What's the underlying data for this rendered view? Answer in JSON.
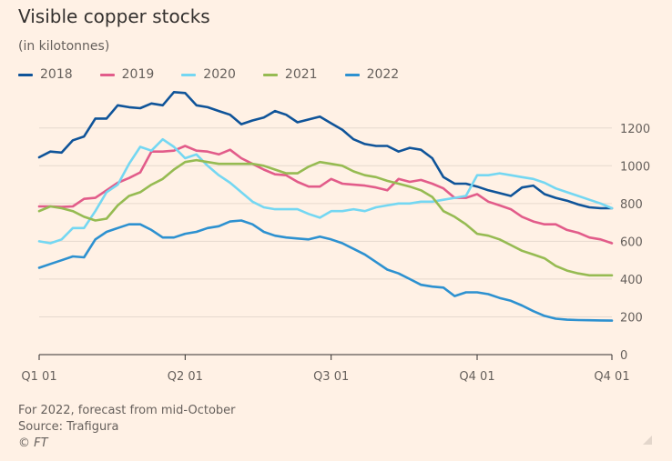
{
  "title": "Visible copper stocks",
  "subtitle": "(in kilotonnes)",
  "footer": {
    "note": "For 2022, forecast from mid-October",
    "source": "Source: Trafigura",
    "copyright": "© FT"
  },
  "chart_data": {
    "type": "line",
    "title": "Visible copper stocks",
    "ylabel": "(in kilotonnes)",
    "xlabel": "",
    "ylim": [
      0,
      1300
    ],
    "yticks": [
      0,
      200,
      400,
      600,
      800,
      1000,
      1200
    ],
    "xticks": [
      {
        "label": "Q1 01",
        "week": 0
      },
      {
        "label": "Q2 01",
        "week": 13
      },
      {
        "label": "Q3 01",
        "week": 26
      },
      {
        "label": "Q4 01",
        "week": 39
      },
      {
        "label": "Q4 01",
        "week": 51
      }
    ],
    "xlim": [
      0,
      51
    ],
    "grid": "horizontal",
    "legend_position": "top-left",
    "series": [
      {
        "name": "2018",
        "color": "#0f5499",
        "values": [
          1045,
          1075,
          1070,
          1135,
          1155,
          1250,
          1250,
          1320,
          1310,
          1305,
          1330,
          1320,
          1390,
          1385,
          1320,
          1310,
          1290,
          1270,
          1220,
          1240,
          1255,
          1290,
          1270,
          1230,
          1245,
          1260,
          1225,
          1190,
          1140,
          1115,
          1105,
          1105,
          1075,
          1095,
          1085,
          1040,
          940,
          905,
          905,
          890,
          870,
          855,
          840,
          885,
          895,
          850,
          830,
          815,
          795,
          780,
          775,
          775
        ]
      },
      {
        "name": "2019",
        "color": "#e25c8a",
        "values": [
          785,
          785,
          782,
          785,
          825,
          830,
          870,
          910,
          935,
          965,
          1075,
          1075,
          1080,
          1105,
          1080,
          1075,
          1060,
          1085,
          1040,
          1010,
          980,
          955,
          950,
          915,
          890,
          890,
          930,
          905,
          900,
          895,
          885,
          870,
          930,
          915,
          925,
          905,
          880,
          830,
          830,
          850,
          810,
          790,
          770,
          730,
          705,
          690,
          690,
          660,
          645,
          620,
          610,
          590
        ]
      },
      {
        "name": "2020",
        "color": "#74d7f2",
        "values": [
          600,
          590,
          610,
          670,
          670,
          760,
          860,
          900,
          1010,
          1100,
          1080,
          1140,
          1100,
          1040,
          1060,
          1000,
          950,
          910,
          860,
          810,
          780,
          770,
          770,
          770,
          745,
          725,
          760,
          760,
          770,
          760,
          780,
          790,
          800,
          800,
          810,
          810,
          820,
          830,
          840,
          950,
          950,
          960,
          950,
          940,
          930,
          910,
          880,
          860,
          840,
          820,
          800,
          775
        ]
      },
      {
        "name": "2021",
        "color": "#96bb52",
        "values": [
          760,
          785,
          775,
          760,
          730,
          710,
          720,
          790,
          840,
          860,
          900,
          930,
          980,
          1020,
          1030,
          1020,
          1010,
          1010,
          1010,
          1010,
          1000,
          980,
          960,
          960,
          995,
          1020,
          1010,
          1000,
          970,
          950,
          940,
          920,
          905,
          890,
          870,
          835,
          760,
          730,
          690,
          640,
          630,
          610,
          580,
          550,
          530,
          510,
          470,
          445,
          430,
          420,
          420,
          420
        ]
      },
      {
        "name": "2022",
        "color": "#2d91d0",
        "values": [
          460,
          480,
          500,
          520,
          515,
          610,
          650,
          670,
          690,
          690,
          660,
          620,
          620,
          640,
          650,
          670,
          680,
          705,
          710,
          690,
          650,
          630,
          620,
          615,
          610,
          625,
          610,
          590,
          560,
          530,
          490,
          450,
          430,
          400,
          370,
          360,
          355,
          310,
          330,
          330,
          320,
          300,
          285,
          260,
          230,
          205,
          190,
          185,
          183,
          182,
          181,
          180
        ]
      }
    ]
  }
}
